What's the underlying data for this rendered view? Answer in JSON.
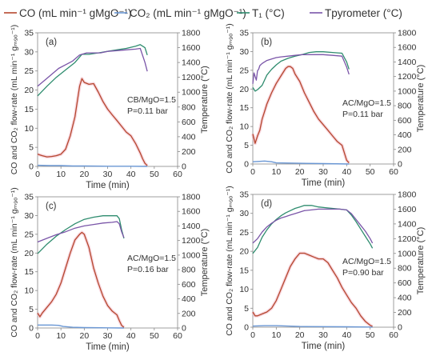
{
  "legend": {
    "placement": "top",
    "items": [
      {
        "label": "CO (mL min⁻¹ gMgO⁻¹)",
        "color": "#b5472e"
      },
      {
        "label": "CO₂ (mL min⁻¹ gMgO⁻¹)",
        "color": "#6a97d4"
      },
      {
        "label": "T₁ (°C)",
        "color": "#2e8c6e"
      },
      {
        "label": "Tpyrometer (°C)",
        "color": "#7a55a8"
      }
    ]
  },
  "chart_data": [
    {
      "type": "line",
      "panel_label": "(a)",
      "annotation": [
        "CB/MgO=1.5",
        "P=0.11 bar"
      ],
      "xlabel": "Time (min)",
      "ylabel_left": "CO and CO₂ flow-rate (mL min⁻¹ gₘ₉ₒ⁻¹)",
      "ylabel_right": "Temperature (°C)",
      "xlim": [
        0,
        60
      ],
      "xticks": [
        0,
        10,
        20,
        30,
        40,
        50,
        60
      ],
      "ylim_left": [
        0,
        35
      ],
      "yticks_left": [
        0,
        5,
        10,
        15,
        20,
        25,
        30,
        35
      ],
      "ylim_right": [
        0,
        1800
      ],
      "yticks_right": [
        0,
        200,
        400,
        600,
        800,
        1000,
        1200,
        1400,
        1600,
        1800
      ],
      "grid": false,
      "series": [
        {
          "name": "CO",
          "axis": "left",
          "x": [
            0,
            2,
            4,
            6,
            8,
            10,
            12,
            14,
            16,
            17,
            18,
            19,
            20,
            22,
            24,
            26,
            28,
            30,
            32,
            34,
            36,
            38,
            40,
            42,
            44,
            45,
            46,
            47
          ],
          "y": [
            3.2,
            2.8,
            2.5,
            2.6,
            2.8,
            3.2,
            4.5,
            8,
            13,
            17,
            21,
            23,
            22,
            21.5,
            21.7,
            19.5,
            17,
            15,
            13.5,
            12,
            10.5,
            9,
            8,
            6,
            3.5,
            2,
            0.8,
            0.2
          ]
        },
        {
          "name": "CO₂",
          "axis": "left",
          "x": [
            0,
            5,
            10,
            15,
            20,
            30,
            40,
            47
          ],
          "y": [
            0.3,
            0.2,
            0.2,
            0.1,
            0.1,
            0.05,
            0.05,
            0
          ]
        },
        {
          "name": "T₁",
          "axis": "right",
          "x": [
            0,
            4,
            8,
            12,
            16,
            19,
            22,
            26,
            30,
            34,
            38,
            42,
            44,
            46,
            47
          ],
          "y": [
            950,
            1080,
            1200,
            1300,
            1400,
            1510,
            1510,
            1530,
            1550,
            1570,
            1590,
            1620,
            1640,
            1600,
            1500
          ]
        },
        {
          "name": "Tpyrometer",
          "axis": "right",
          "x": [
            0,
            3,
            6,
            9,
            12,
            15,
            18,
            21,
            24,
            27,
            30,
            34,
            38,
            42,
            44,
            46,
            47
          ],
          "y": [
            1080,
            1160,
            1240,
            1320,
            1370,
            1420,
            1500,
            1530,
            1530,
            1530,
            1550,
            1560,
            1570,
            1580,
            1590,
            1400,
            1280
          ]
        }
      ]
    },
    {
      "type": "line",
      "panel_label": "(b)",
      "annotation": [
        "AC/MgO=1.5",
        "P=0.11 bar"
      ],
      "xlabel": "Time (min)",
      "ylabel_left": "CO and CO₂ flow-rate (mL min⁻¹ gₘ₉ₒ⁻¹)",
      "ylabel_right": "Temperature (°C)",
      "xlim": [
        0,
        60
      ],
      "xticks": [
        0,
        10,
        20,
        30,
        40,
        50,
        60
      ],
      "ylim_left": [
        0,
        35
      ],
      "yticks_left": [
        0,
        5,
        10,
        15,
        20,
        25,
        30,
        35
      ],
      "ylim_right": [
        0,
        1800
      ],
      "yticks_right": [
        0,
        200,
        400,
        600,
        800,
        1000,
        1200,
        1400,
        1600,
        1800
      ],
      "grid": false,
      "series": [
        {
          "name": "CO",
          "axis": "left",
          "x": [
            0,
            1,
            2,
            3,
            4,
            5,
            6,
            8,
            10,
            12,
            14,
            15,
            16,
            17,
            18,
            20,
            22,
            24,
            26,
            28,
            30,
            32,
            34,
            36,
            38,
            39,
            40,
            41
          ],
          "y": [
            8,
            5.5,
            7.5,
            9,
            12,
            14,
            16,
            19,
            21.5,
            23.5,
            25.5,
            26,
            26,
            25.5,
            24,
            22,
            19,
            16.5,
            14,
            12,
            10.5,
            9,
            7.5,
            6,
            5,
            3,
            1,
            0.3
          ]
        },
        {
          "name": "CO₂",
          "axis": "left",
          "x": [
            0,
            3,
            5,
            8,
            10,
            20,
            30,
            41
          ],
          "y": [
            0.6,
            0.7,
            0.8,
            0.6,
            0.3,
            0.2,
            0.1,
            0
          ]
        },
        {
          "name": "T₁",
          "axis": "right",
          "x": [
            0,
            1,
            2,
            4,
            6,
            8,
            10,
            12,
            15,
            18,
            21,
            24,
            27,
            30,
            34,
            38,
            40,
            41
          ],
          "y": [
            1050,
            1000,
            1020,
            1080,
            1220,
            1300,
            1360,
            1410,
            1450,
            1480,
            1500,
            1530,
            1540,
            1540,
            1530,
            1520,
            1400,
            1300
          ]
        },
        {
          "name": "Tpyrometer",
          "axis": "right",
          "x": [
            0,
            0.5,
            1,
            1.5,
            2,
            2.5,
            3,
            4,
            6,
            8,
            10,
            12,
            15,
            18,
            21,
            24,
            27,
            30,
            34,
            38,
            40,
            41
          ],
          "y": [
            1100,
            1250,
            1200,
            1150,
            1280,
            1300,
            1350,
            1380,
            1420,
            1440,
            1460,
            1470,
            1480,
            1490,
            1500,
            1500,
            1500,
            1500,
            1490,
            1480,
            1330,
            1230
          ]
        }
      ]
    },
    {
      "type": "line",
      "panel_label": "(c)",
      "annotation": [
        "AC/MgO=1.5",
        "P=0.16 bar"
      ],
      "xlabel": "Time (min)",
      "ylabel_left": "CO and CO₂ flow-rate (mL min⁻¹ gₘ₉ₒ⁻¹)",
      "ylabel_right": "Temperature (°C)",
      "xlim": [
        0,
        60
      ],
      "xticks": [
        0,
        10,
        20,
        30,
        40,
        50,
        60
      ],
      "ylim_left": [
        0,
        35
      ],
      "yticks_left": [
        0,
        5,
        10,
        15,
        20,
        25,
        30,
        35
      ],
      "ylim_right": [
        0,
        1800
      ],
      "yticks_right": [
        0,
        200,
        400,
        600,
        800,
        1000,
        1200,
        1400,
        1600,
        1800
      ],
      "grid": false,
      "series": [
        {
          "name": "CO",
          "axis": "left",
          "x": [
            0,
            1,
            2,
            4,
            6,
            8,
            10,
            12,
            14,
            16,
            18,
            19,
            20,
            22,
            24,
            26,
            28,
            30,
            32,
            34,
            35,
            36,
            37
          ],
          "y": [
            4,
            3,
            4,
            5.5,
            7,
            9,
            12,
            16,
            20,
            23.5,
            25,
            25.5,
            25,
            21.5,
            16,
            12,
            8.5,
            6,
            4.5,
            3.5,
            2,
            0.7,
            0.2
          ]
        },
        {
          "name": "CO₂",
          "axis": "left",
          "x": [
            0,
            3,
            6,
            9,
            11,
            15,
            20,
            30,
            37
          ],
          "y": [
            0.8,
            0.8,
            0.8,
            0.7,
            0.4,
            0.2,
            0.1,
            0.05,
            0
          ]
        },
        {
          "name": "T₁",
          "axis": "right",
          "x": [
            0,
            4,
            8,
            12,
            16,
            20,
            24,
            28,
            32,
            34,
            35,
            36,
            37
          ],
          "y": [
            1020,
            1150,
            1260,
            1350,
            1430,
            1490,
            1520,
            1540,
            1540,
            1540,
            1500,
            1350,
            1230
          ]
        },
        {
          "name": "Tpyrometer",
          "axis": "right",
          "x": [
            0,
            4,
            8,
            12,
            16,
            20,
            24,
            28,
            32,
            34,
            35,
            36,
            37
          ],
          "y": [
            1180,
            1230,
            1280,
            1320,
            1370,
            1400,
            1420,
            1440,
            1450,
            1460,
            1430,
            1320,
            1240
          ]
        }
      ]
    },
    {
      "type": "line",
      "panel_label": "(d)",
      "annotation": [
        "AC/MgO=1.5",
        "P=0.90 bar"
      ],
      "xlabel": "Time (min)",
      "ylabel_left": "CO and CO₂ flow-rate (mL min⁻¹ gₘ₉ₒ⁻¹)",
      "ylabel_right": "Temperature (°C)",
      "xlim": [
        0,
        60
      ],
      "xticks": [
        0,
        10,
        20,
        30,
        40,
        50,
        60
      ],
      "ylim_left": [
        0,
        35
      ],
      "yticks_left": [
        0,
        5,
        10,
        15,
        20,
        25,
        30,
        35
      ],
      "ylim_right": [
        0,
        1800
      ],
      "yticks_right": [
        0,
        200,
        400,
        600,
        800,
        1000,
        1200,
        1400,
        1600,
        1800
      ],
      "grid": false,
      "series": [
        {
          "name": "CO",
          "axis": "left",
          "x": [
            0,
            1,
            2,
            4,
            6,
            8,
            10,
            12,
            14,
            16,
            18,
            20,
            22,
            24,
            26,
            28,
            30,
            32,
            34,
            36,
            38,
            40,
            42,
            44,
            46,
            48,
            50,
            51
          ],
          "y": [
            4,
            3,
            3,
            3.5,
            4,
            5,
            7,
            10,
            13,
            16,
            18,
            19.5,
            19.5,
            19,
            18.5,
            18,
            18,
            17,
            15,
            13,
            10.5,
            8.5,
            6.5,
            5,
            3,
            1.5,
            0.5,
            0.2
          ]
        },
        {
          "name": "CO₂",
          "axis": "left",
          "x": [
            0,
            5,
            10,
            15,
            20,
            30,
            40,
            50,
            51
          ],
          "y": [
            0.3,
            0.4,
            0.4,
            0.3,
            0.2,
            0.15,
            0.1,
            0.05,
            0
          ]
        },
        {
          "name": "T₁",
          "axis": "right",
          "x": [
            0,
            2,
            4,
            6,
            8,
            10,
            12,
            14,
            16,
            18,
            20,
            22,
            25,
            28,
            31,
            34,
            37,
            40,
            42,
            44,
            46,
            48,
            50,
            51
          ],
          "y": [
            1000,
            1080,
            1220,
            1320,
            1400,
            1460,
            1510,
            1550,
            1580,
            1610,
            1630,
            1650,
            1650,
            1630,
            1620,
            1610,
            1600,
            1590,
            1520,
            1430,
            1330,
            1230,
            1130,
            1070
          ]
        },
        {
          "name": "Tpyrometer",
          "axis": "right",
          "x": [
            0,
            2,
            4,
            6,
            8,
            10,
            12,
            14,
            16,
            18,
            20,
            22,
            25,
            28,
            31,
            34,
            37,
            40,
            42,
            44,
            46,
            48,
            50,
            51
          ],
          "y": [
            1140,
            1200,
            1290,
            1360,
            1410,
            1450,
            1480,
            1500,
            1520,
            1540,
            1560,
            1580,
            1590,
            1600,
            1600,
            1600,
            1600,
            1590,
            1540,
            1460,
            1380,
            1300,
            1200,
            1140
          ]
        }
      ]
    }
  ]
}
